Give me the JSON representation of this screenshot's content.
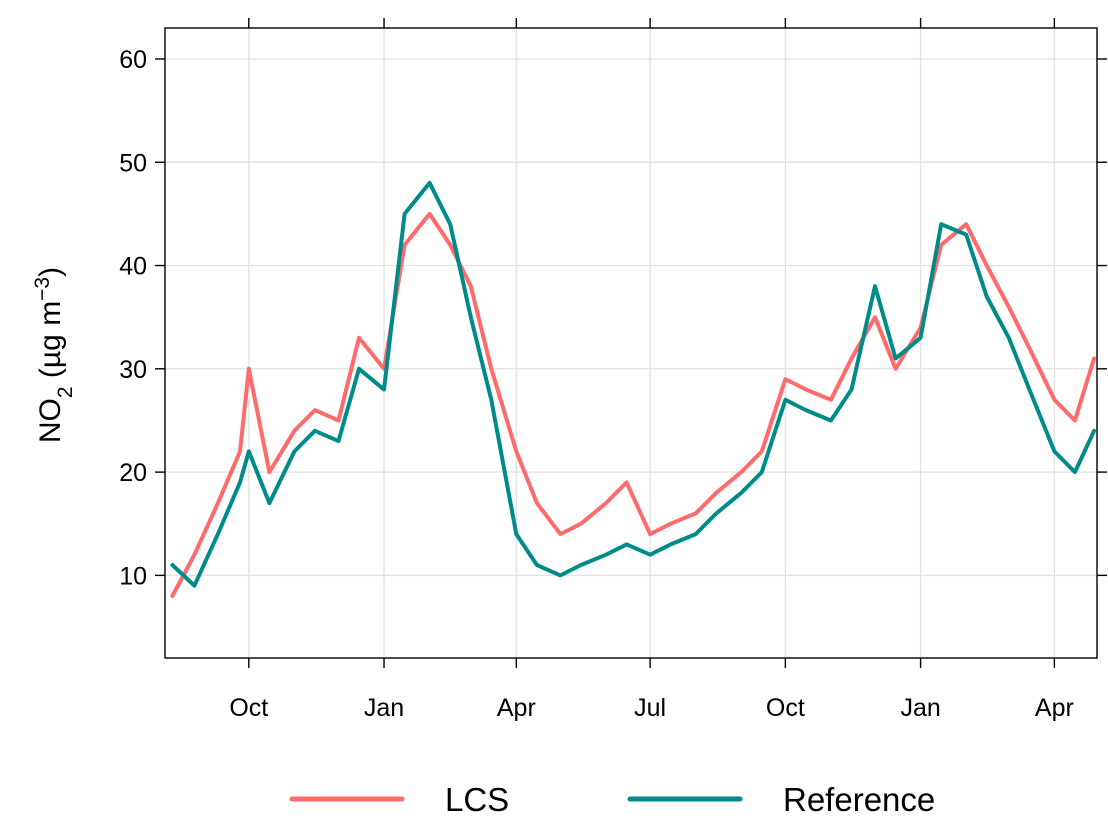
{
  "chart_data": {
    "type": "line",
    "title": "",
    "ylabel": {
      "base": "NO",
      "sub": "2",
      "unit_open": " (µg m",
      "sup": "−3",
      "unit_close": ")"
    },
    "xlabel": "",
    "ylim": [
      2,
      63
    ],
    "xlim": [
      "2018-08-05",
      "2020-04-30"
    ],
    "yticks": [
      10,
      20,
      30,
      40,
      50,
      60
    ],
    "xticks": [
      {
        "date": "2018-10-01",
        "label": "Oct"
      },
      {
        "date": "2019-01-01",
        "label": "Jan"
      },
      {
        "date": "2019-04-01",
        "label": "Apr"
      },
      {
        "date": "2019-07-01",
        "label": "Jul"
      },
      {
        "date": "2019-10-01",
        "label": "Oct"
      },
      {
        "date": "2020-01-01",
        "label": "Jan"
      },
      {
        "date": "2020-04-01",
        "label": "Apr"
      }
    ],
    "grid": true,
    "legend_position": "bottom",
    "series": [
      {
        "name": "LCS",
        "color": "#ff6b6b",
        "x": [
          "2018-08-10",
          "2018-08-25",
          "2018-09-10",
          "2018-09-25",
          "2018-10-01",
          "2018-10-15",
          "2018-11-01",
          "2018-11-15",
          "2018-12-01",
          "2018-12-15",
          "2019-01-01",
          "2019-01-15",
          "2019-02-01",
          "2019-02-15",
          "2019-03-01",
          "2019-03-15",
          "2019-04-01",
          "2019-04-15",
          "2019-05-01",
          "2019-05-15",
          "2019-06-01",
          "2019-06-15",
          "2019-07-01",
          "2019-07-15",
          "2019-08-01",
          "2019-08-15",
          "2019-09-01",
          "2019-09-15",
          "2019-10-01",
          "2019-10-15",
          "2019-11-01",
          "2019-11-15",
          "2019-12-01",
          "2019-12-15",
          "2020-01-01",
          "2020-01-15",
          "2020-02-01",
          "2020-02-15",
          "2020-03-01",
          "2020-03-15",
          "2020-04-01",
          "2020-04-15",
          "2020-04-28"
        ],
        "values": [
          8,
          12,
          17,
          22,
          30,
          20,
          24,
          26,
          25,
          33,
          30,
          42,
          45,
          42,
          38,
          30,
          22,
          17,
          14,
          15,
          17,
          19,
          14,
          15,
          16,
          18,
          20,
          22,
          29,
          28,
          27,
          31,
          35,
          30,
          34,
          42,
          44,
          40,
          36,
          32,
          27,
          25,
          31
        ]
      },
      {
        "name": "Reference",
        "color": "#008b8b",
        "x": [
          "2018-08-10",
          "2018-08-25",
          "2018-09-10",
          "2018-09-25",
          "2018-10-01",
          "2018-10-15",
          "2018-11-01",
          "2018-11-15",
          "2018-12-01",
          "2018-12-15",
          "2019-01-01",
          "2019-01-15",
          "2019-02-01",
          "2019-02-15",
          "2019-03-01",
          "2019-03-15",
          "2019-04-01",
          "2019-04-15",
          "2019-05-01",
          "2019-05-15",
          "2019-06-01",
          "2019-06-15",
          "2019-07-01",
          "2019-07-15",
          "2019-08-01",
          "2019-08-15",
          "2019-09-01",
          "2019-09-15",
          "2019-10-01",
          "2019-10-15",
          "2019-11-01",
          "2019-11-15",
          "2019-12-01",
          "2019-12-15",
          "2020-01-01",
          "2020-01-15",
          "2020-02-01",
          "2020-02-15",
          "2020-03-01",
          "2020-03-15",
          "2020-04-01",
          "2020-04-15",
          "2020-04-28"
        ],
        "values": [
          11,
          9,
          14,
          19,
          22,
          17,
          22,
          24,
          23,
          30,
          28,
          45,
          48,
          44,
          35,
          27,
          14,
          11,
          10,
          11,
          12,
          13,
          12,
          13,
          14,
          16,
          18,
          20,
          27,
          26,
          25,
          28,
          38,
          31,
          33,
          44,
          43,
          37,
          33,
          28,
          22,
          20,
          24
        ]
      }
    ]
  }
}
